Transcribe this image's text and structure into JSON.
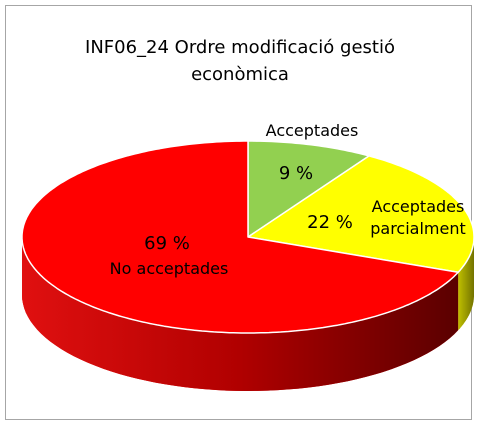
{
  "chart_data": {
    "type": "pie",
    "title": "INF06_24 Ordre modificació gestió econòmica",
    "categories": [
      "Acceptades",
      "Acceptades parcialment",
      "No acceptades"
    ],
    "values": [
      9,
      22,
      69
    ],
    "value_labels": [
      "9 %",
      "22 %",
      "69 %"
    ],
    "colors": [
      "#92d050",
      "#ffff00",
      "#ff0000"
    ]
  }
}
